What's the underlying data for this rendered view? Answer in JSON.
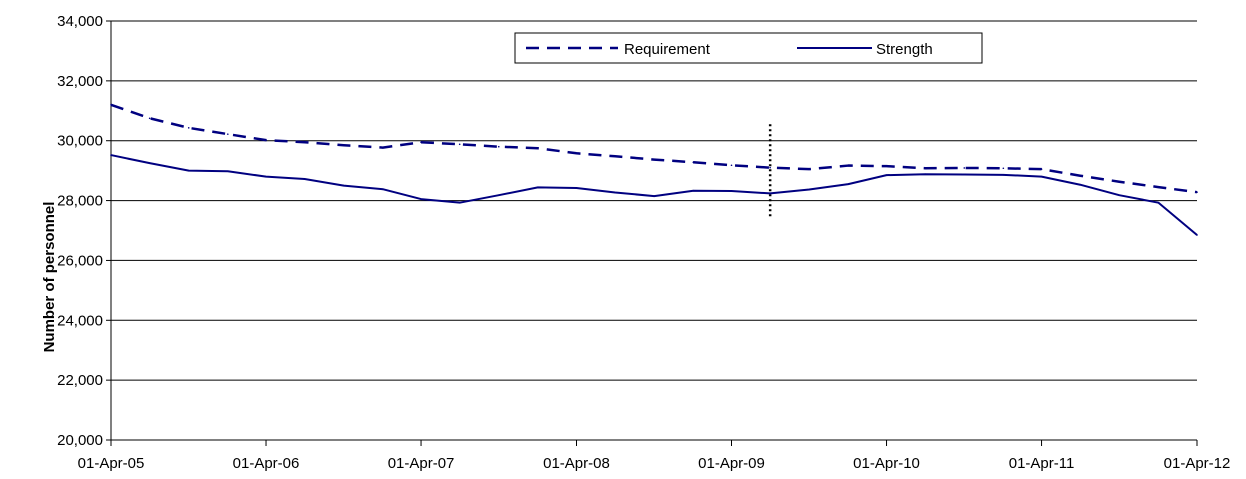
{
  "chart_data": {
    "type": "line",
    "title": "",
    "xlabel": "",
    "ylabel": "Number of personnel",
    "ylim": [
      20000,
      34000
    ],
    "xlim": [
      "2005-04-01",
      "2012-04-01"
    ],
    "y_ticks": [
      {
        "value": 20000,
        "label": "20,000"
      },
      {
        "value": 22000,
        "label": "22,000"
      },
      {
        "value": 24000,
        "label": "24,000"
      },
      {
        "value": 26000,
        "label": "26,000"
      },
      {
        "value": 28000,
        "label": "28,000"
      },
      {
        "value": 30000,
        "label": "30,000"
      },
      {
        "value": 32000,
        "label": "32,000"
      },
      {
        "value": 34000,
        "label": "34,000"
      }
    ],
    "x_ticks": [
      {
        "value": "2005-04-01",
        "label": "01-Apr-05"
      },
      {
        "value": "2006-04-01",
        "label": "01-Apr-06"
      },
      {
        "value": "2007-04-01",
        "label": "01-Apr-07"
      },
      {
        "value": "2008-04-01",
        "label": "01-Apr-08"
      },
      {
        "value": "2009-04-01",
        "label": "01-Apr-09"
      },
      {
        "value": "2010-04-01",
        "label": "01-Apr-10"
      },
      {
        "value": "2011-04-01",
        "label": "01-Apr-11"
      },
      {
        "value": "2012-04-01",
        "label": "01-Apr-12"
      }
    ],
    "grid": "horizontal",
    "legend_position": "top-center",
    "series": [
      {
        "name": "Requirement",
        "style": "dashed",
        "color": "#000080",
        "points": [
          {
            "x": "2005-04-01",
            "y": 31200
          },
          {
            "x": "2005-07-01",
            "y": 30750
          },
          {
            "x": "2005-10-01",
            "y": 30430
          },
          {
            "x": "2006-01-01",
            "y": 30220
          },
          {
            "x": "2006-04-01",
            "y": 30020
          },
          {
            "x": "2006-07-01",
            "y": 29950
          },
          {
            "x": "2006-10-01",
            "y": 29850
          },
          {
            "x": "2007-01-01",
            "y": 29770
          },
          {
            "x": "2007-04-01",
            "y": 29950
          },
          {
            "x": "2007-07-01",
            "y": 29880
          },
          {
            "x": "2007-10-01",
            "y": 29800
          },
          {
            "x": "2008-01-01",
            "y": 29750
          },
          {
            "x": "2008-04-01",
            "y": 29580
          },
          {
            "x": "2008-07-01",
            "y": 29480
          },
          {
            "x": "2008-10-01",
            "y": 29370
          },
          {
            "x": "2009-01-01",
            "y": 29280
          },
          {
            "x": "2009-04-01",
            "y": 29180
          },
          {
            "x": "2009-07-01",
            "y": 29100
          },
          {
            "x": "2009-10-01",
            "y": 29050
          },
          {
            "x": "2010-01-01",
            "y": 29170
          },
          {
            "x": "2010-04-01",
            "y": 29150
          },
          {
            "x": "2010-07-01",
            "y": 29080
          },
          {
            "x": "2010-10-01",
            "y": 29090
          },
          {
            "x": "2011-01-01",
            "y": 29080
          },
          {
            "x": "2011-04-01",
            "y": 29050
          },
          {
            "x": "2011-07-01",
            "y": 28830
          },
          {
            "x": "2011-10-01",
            "y": 28630
          },
          {
            "x": "2012-01-01",
            "y": 28450
          },
          {
            "x": "2012-04-01",
            "y": 28280
          }
        ]
      },
      {
        "name": "Strength",
        "style": "solid",
        "color": "#000080",
        "points": [
          {
            "x": "2005-04-01",
            "y": 29520
          },
          {
            "x": "2005-07-01",
            "y": 29250
          },
          {
            "x": "2005-10-01",
            "y": 29000
          },
          {
            "x": "2006-01-01",
            "y": 28980
          },
          {
            "x": "2006-04-01",
            "y": 28800
          },
          {
            "x": "2006-07-01",
            "y": 28720
          },
          {
            "x": "2006-10-01",
            "y": 28500
          },
          {
            "x": "2007-01-01",
            "y": 28380
          },
          {
            "x": "2007-04-01",
            "y": 28050
          },
          {
            "x": "2007-07-01",
            "y": 27930
          },
          {
            "x": "2007-10-01",
            "y": 28180
          },
          {
            "x": "2008-01-01",
            "y": 28440
          },
          {
            "x": "2008-04-01",
            "y": 28420
          },
          {
            "x": "2008-07-01",
            "y": 28270
          },
          {
            "x": "2008-10-01",
            "y": 28150
          },
          {
            "x": "2009-01-01",
            "y": 28330
          },
          {
            "x": "2009-04-01",
            "y": 28320
          },
          {
            "x": "2009-07-01",
            "y": 28240
          },
          {
            "x": "2009-10-01",
            "y": 28370
          },
          {
            "x": "2010-01-01",
            "y": 28550
          },
          {
            "x": "2010-04-01",
            "y": 28850
          },
          {
            "x": "2010-07-01",
            "y": 28880
          },
          {
            "x": "2010-10-01",
            "y": 28870
          },
          {
            "x": "2011-01-01",
            "y": 28860
          },
          {
            "x": "2011-04-01",
            "y": 28800
          },
          {
            "x": "2011-07-01",
            "y": 28530
          },
          {
            "x": "2011-10-01",
            "y": 28180
          },
          {
            "x": "2012-01-01",
            "y": 27930
          },
          {
            "x": "2012-04-01",
            "y": 26850
          }
        ]
      }
    ],
    "annotations": [
      {
        "type": "vertical-dotted-line",
        "x": "2009-07-01",
        "y_from": 27450,
        "y_to": 30550,
        "color": "#000000"
      }
    ]
  }
}
